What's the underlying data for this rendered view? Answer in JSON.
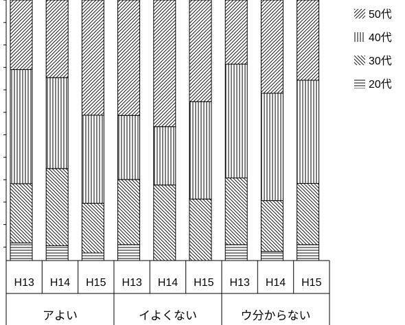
{
  "chart_data": {
    "type": "bar",
    "stacked": true,
    "normalized": true,
    "groups": [
      "アよい",
      "イよくない",
      "ウ分からない"
    ],
    "categories": [
      "H13",
      "H14",
      "H15",
      "H13",
      "H14",
      "H15",
      "H13",
      "H14",
      "H15"
    ],
    "series": [
      {
        "name": "20代",
        "values": [
          0.068,
          0.057,
          0.029,
          0.061,
          0.0,
          0.0,
          0.061,
          0.035,
          0.061
        ],
        "pattern": "horizontal"
      },
      {
        "name": "30代",
        "values": [
          0.227,
          0.296,
          0.191,
          0.25,
          0.29,
          0.236,
          0.256,
          0.195,
          0.235
        ],
        "pattern": "diag-back"
      },
      {
        "name": "40代",
        "values": [
          0.438,
          0.349,
          0.338,
          0.246,
          0.224,
          0.374,
          0.437,
          0.412,
          0.396
        ],
        "pattern": "vertical"
      },
      {
        "name": "50代",
        "values": [
          0.267,
          0.298,
          0.442,
          0.443,
          0.486,
          0.39,
          0.246,
          0.358,
          0.308
        ],
        "pattern": "diag-fwd"
      }
    ],
    "ylim": [
      0,
      1
    ],
    "grid": false,
    "legend_position": "right",
    "legend_order": [
      "50代",
      "40代",
      "30代",
      "20代"
    ]
  }
}
